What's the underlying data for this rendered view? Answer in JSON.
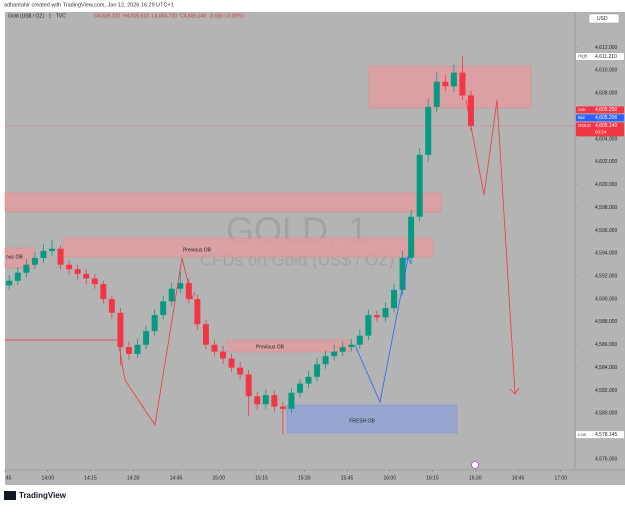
{
  "chart_data": {
    "type": "candlestick",
    "credit": "adhantahir created with TradingView.com, Jan 12, 2026 16:29 UTC+1",
    "title": "Gold (US$ / OZ) · 1 · TVC",
    "header_values": [
      "O4,605.320",
      "H4,605.610",
      "L4,604.710",
      "C4,605.140",
      "-0.050 (-0.00%)"
    ],
    "watermark": "GOLD, 1",
    "watermark_subtitle": "CFDs on Gold (US$ / OZ)",
    "currency": "USD",
    "brand": "TradingView",
    "up_color": "#089981",
    "down_color": "#f23645",
    "grid": false,
    "x": [
      "13:45",
      "13:48",
      "13:51",
      "13:54",
      "13:57",
      "14:00",
      "14:03",
      "14:06",
      "14:09",
      "14:12",
      "14:15",
      "14:18",
      "14:21",
      "14:24",
      "14:27",
      "14:30",
      "14:33",
      "14:36",
      "14:39",
      "14:42",
      "14:45",
      "14:48",
      "14:51",
      "14:54",
      "14:57",
      "15:00",
      "15:03",
      "15:06",
      "15:09",
      "15:12",
      "15:15",
      "15:18",
      "15:21",
      "15:24",
      "15:27",
      "15:30",
      "15:33",
      "15:36",
      "15:39",
      "15:42",
      "15:45",
      "15:48",
      "15:51",
      "15:54",
      "15:57",
      "16:00",
      "16:03",
      "16:06",
      "16:09",
      "16:12",
      "16:15",
      "16:18",
      "16:21",
      "16:24",
      "16:27"
    ],
    "open": [
      4591.2,
      4591.6,
      4592.3,
      4593.0,
      4593.6,
      4594.2,
      4594.4,
      4593.0,
      4592.6,
      4592.2,
      4591.8,
      4591.3,
      4590.0,
      4588.8,
      4585.8,
      4585.2,
      4586.0,
      4587.2,
      4588.6,
      4589.8,
      4590.9,
      4591.4,
      4590.0,
      4587.8,
      4586.0,
      4585.4,
      4584.8,
      4584.0,
      4583.4,
      4581.5,
      4580.8,
      4581.6,
      4580.6,
      4580.4,
      4581.8,
      4582.6,
      4583.2,
      4584.3,
      4585.0,
      4585.4,
      4585.8,
      4586.0,
      4586.8,
      4588.6,
      4588.4,
      4589.2,
      4590.8,
      4593.6,
      4597.2,
      4602.6,
      4606.8,
      4609.0,
      4608.6,
      4609.8,
      4607.8
    ],
    "high": [
      4592.1,
      4592.8,
      4593.5,
      4594.1,
      4594.8,
      4595.2,
      4594.7,
      4593.4,
      4593.0,
      4592.6,
      4592.2,
      4591.6,
      4590.3,
      4589.2,
      4586.3,
      4586.5,
      4587.7,
      4589.1,
      4590.3,
      4591.4,
      4592.4,
      4591.8,
      4590.4,
      4588.2,
      4586.4,
      4585.9,
      4585.2,
      4584.5,
      4583.8,
      4581.9,
      4582.1,
      4582.0,
      4581.0,
      4582.2,
      4583.0,
      4583.7,
      4584.8,
      4585.5,
      4586.0,
      4586.3,
      4586.5,
      4587.3,
      4589.1,
      4589.0,
      4589.7,
      4591.3,
      4594.2,
      4597.8,
      4603.2,
      4607.5,
      4609.8,
      4609.6,
      4610.5,
      4611.21,
      4608.2
    ],
    "low": [
      4590.8,
      4591.2,
      4591.9,
      4592.6,
      4593.2,
      4593.8,
      4592.6,
      4592.1,
      4591.7,
      4591.3,
      4590.9,
      4589.6,
      4588.3,
      4584.2,
      4584.7,
      4584.9,
      4585.6,
      4586.8,
      4588.2,
      4589.4,
      4590.5,
      4589.6,
      4587.3,
      4585.6,
      4585.0,
      4584.3,
      4583.6,
      4583.0,
      4579.8,
      4580.3,
      4580.4,
      4580.1,
      4578.145,
      4580.0,
      4581.4,
      4582.2,
      4582.8,
      4583.9,
      4584.6,
      4585.0,
      4585.4,
      4585.6,
      4586.4,
      4588.0,
      4588.0,
      4588.8,
      4590.3,
      4593.1,
      4596.8,
      4602.0,
      4606.3,
      4608.2,
      4608.1,
      4607.4,
      4604.7
    ],
    "close": [
      4591.6,
      4592.3,
      4593.0,
      4593.6,
      4594.2,
      4594.4,
      4593.0,
      4592.6,
      4592.2,
      4591.8,
      4591.3,
      4590.0,
      4588.8,
      4585.8,
      4585.2,
      4586.0,
      4587.2,
      4588.6,
      4589.8,
      4590.9,
      4591.4,
      4590.0,
      4587.8,
      4586.0,
      4585.4,
      4584.8,
      4584.0,
      4583.4,
      4581.5,
      4580.8,
      4581.6,
      4580.6,
      4580.4,
      4581.8,
      4582.6,
      4583.2,
      4584.3,
      4585.0,
      4585.4,
      4585.8,
      4586.0,
      4586.8,
      4588.6,
      4588.4,
      4589.2,
      4590.8,
      4593.6,
      4597.2,
      4602.6,
      4606.8,
      4609.0,
      4608.6,
      4609.8,
      4607.8,
      4605.14
    ],
    "xlim": [
      "13:45",
      "17:05"
    ],
    "xticks": [
      {
        "value": "13:45",
        "label": ":45"
      },
      "14:00",
      "14:15",
      "14:30",
      "14:45",
      "15:00",
      "15:15",
      "15:30",
      "15:45",
      "16:00",
      "16:15",
      "16:30",
      "16:45",
      "17:00"
    ],
    "ylim": [
      4575.05,
      4615.1
    ],
    "yticks": [
      {
        "value": 4576,
        "label": "4,576.000"
      },
      {
        "value": 4580,
        "label": "4,580.000"
      },
      {
        "value": 4582,
        "label": "4,582.000"
      },
      {
        "value": 4584,
        "label": "4,584.000"
      },
      {
        "value": 4586,
        "label": "4,586.000"
      },
      {
        "value": 4588,
        "label": "4,588.000"
      },
      {
        "value": 4590,
        "label": "4,590.000"
      },
      {
        "value": 4592,
        "label": "4,592.000"
      },
      {
        "value": 4594,
        "label": "4,594.000"
      },
      {
        "value": 4596,
        "label": "4,596.000"
      },
      {
        "value": 4598,
        "label": "4,598.000"
      },
      {
        "value": 4600,
        "label": "4,600.000"
      },
      {
        "value": 4602,
        "label": "4,602.000"
      },
      {
        "value": 4604,
        "label": "4,604.000"
      },
      {
        "value": 4608,
        "label": "4,608.000"
      },
      {
        "value": 4610,
        "label": "4,610.000"
      },
      {
        "value": 4612,
        "label": "4,612.000"
      }
    ],
    "price_labels": [
      {
        "name": "High",
        "value": 4611.21,
        "label": "4,611.210",
        "color": "#ffffff"
      },
      {
        "name": "Ask",
        "value": 4605.25,
        "label": "4,605.250",
        "color": "#f23645"
      },
      {
        "name": "Bid",
        "value": 4605.206,
        "label": "4,605.206",
        "color": "#2962ff"
      },
      {
        "name": "GOLD",
        "value": 4605.14,
        "label": "4,605.140",
        "color": "#f23645"
      },
      {
        "name": "Low",
        "value": 4578.145,
        "label": "4,578.145",
        "color": "#ffffff"
      }
    ],
    "countdown": "00:54",
    "annotations": [
      "ous OB",
      "Previous OB",
      "Previous OB",
      "FRESH OB"
    ]
  }
}
